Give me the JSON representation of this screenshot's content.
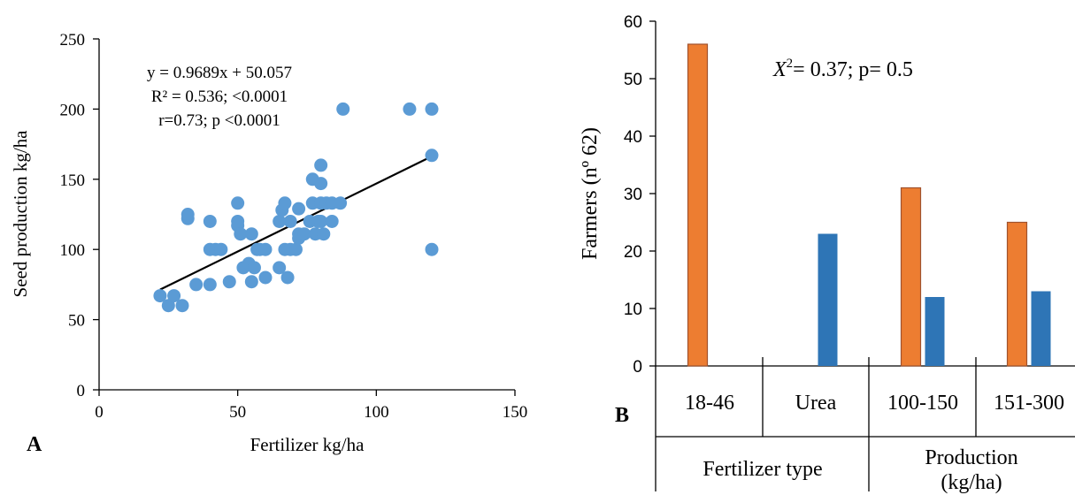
{
  "colors": {
    "scatter_point": "#5b9bd5",
    "trend_line": "#000000",
    "bar_orange": "#ed7d31",
    "bar_orange_stroke": "#a0522d",
    "bar_blue": "#2e75b6",
    "axis": "#000000"
  },
  "chart_data": [
    {
      "type": "scatter",
      "panel_label": "A",
      "xlabel": "Fertilizer kg/ha",
      "ylabel": "Seed production kg/ha",
      "xlim": [
        0,
        150
      ],
      "ylim": [
        0,
        250
      ],
      "xticks": [
        "0",
        "50",
        "100",
        "150"
      ],
      "yticks": [
        "0",
        "50",
        "100",
        "150",
        "200",
        "250"
      ],
      "annotations": [
        "y = 0.9689x + 50.057",
        "R² = 0.536; <0.0001",
        "r=0.73; p <0.0001"
      ],
      "trendline": {
        "slope": 0.9689,
        "intercept": 50.057,
        "x_range": [
          22,
          120
        ]
      },
      "points": [
        [
          22,
          67
        ],
        [
          25,
          60
        ],
        [
          27,
          67
        ],
        [
          30,
          60
        ],
        [
          32,
          122
        ],
        [
          32,
          125
        ],
        [
          35,
          75
        ],
        [
          40,
          75
        ],
        [
          40,
          120
        ],
        [
          40,
          100
        ],
        [
          42,
          100
        ],
        [
          44,
          100
        ],
        [
          47,
          77
        ],
        [
          50,
          133
        ],
        [
          50,
          120
        ],
        [
          50,
          117
        ],
        [
          51,
          111
        ],
        [
          52,
          87
        ],
        [
          54,
          90
        ],
        [
          55,
          77
        ],
        [
          55,
          111
        ],
        [
          56,
          87
        ],
        [
          57,
          100
        ],
        [
          58,
          100
        ],
        [
          60,
          100
        ],
        [
          60,
          80
        ],
        [
          65,
          120
        ],
        [
          65,
          87
        ],
        [
          66,
          128
        ],
        [
          67,
          133
        ],
        [
          67,
          100
        ],
        [
          68,
          80
        ],
        [
          69,
          100
        ],
        [
          69,
          120
        ],
        [
          71,
          100
        ],
        [
          72,
          111
        ],
        [
          72,
          108
        ],
        [
          72,
          129
        ],
        [
          74,
          111
        ],
        [
          76,
          120
        ],
        [
          77,
          133
        ],
        [
          77,
          150
        ],
        [
          78,
          111
        ],
        [
          79,
          120
        ],
        [
          80,
          160
        ],
        [
          80,
          147
        ],
        [
          80,
          133
        ],
        [
          80,
          120
        ],
        [
          81,
          111
        ],
        [
          82,
          133
        ],
        [
          84,
          133
        ],
        [
          84,
          120
        ],
        [
          87,
          133
        ],
        [
          88,
          200
        ],
        [
          112,
          200
        ],
        [
          120,
          200
        ],
        [
          120,
          167
        ],
        [
          120,
          100
        ]
      ]
    },
    {
      "type": "bar",
      "panel_label": "B",
      "ylabel": "Farmers (nº 62)",
      "ylim": [
        0,
        60
      ],
      "yticks": [
        "0",
        "10",
        "20",
        "30",
        "40",
        "50",
        "60"
      ],
      "annotation_stat": "X",
      "annotation_sup": "2",
      "annotation_rest": "= 0.37; p= 0.5",
      "categories": [
        "18-46",
        "Urea",
        "100-150",
        "151-300"
      ],
      "groups": [
        {
          "label": "Fertilizer type",
          "span": [
            0,
            1
          ]
        },
        {
          "label_line1": "Production",
          "label_line2": "(kg/ha)",
          "span": [
            2,
            3
          ]
        }
      ],
      "series": [
        {
          "values": [
            56,
            null,
            31,
            25
          ],
          "color": "orange"
        },
        {
          "values": [
            null,
            23,
            12,
            13
          ],
          "color": "blue"
        }
      ]
    }
  ]
}
